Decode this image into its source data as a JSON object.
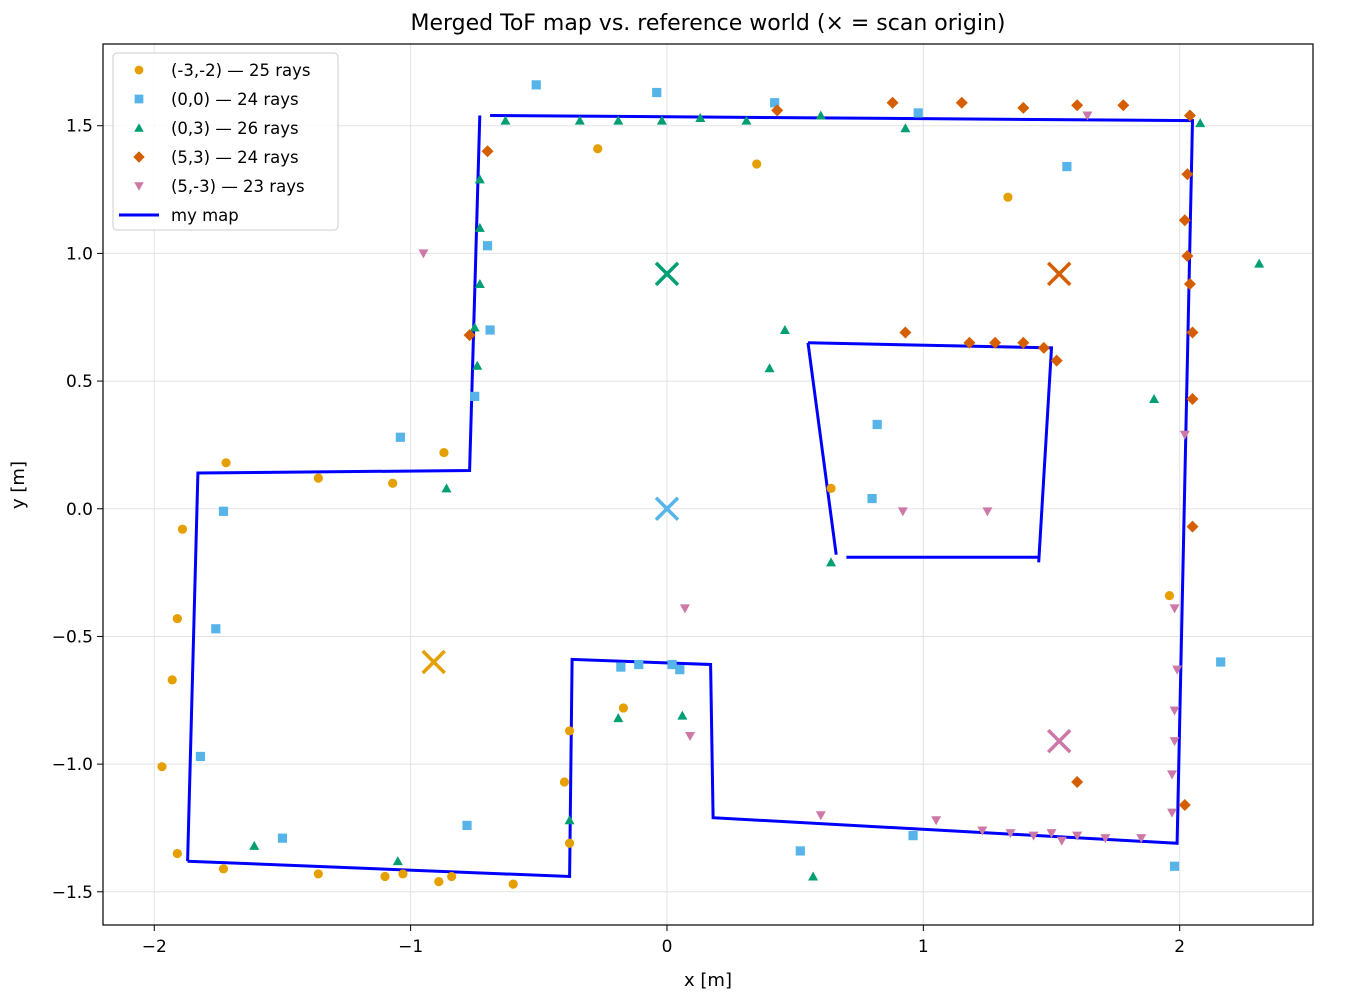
{
  "chart_data": {
    "type": "scatter",
    "title": "Merged ToF map vs. reference world  (× = scan origin)",
    "xlabel": "x [m]",
    "ylabel": "y [m]",
    "xlim": [
      -2.2,
      2.52
    ],
    "ylim": [
      -1.63,
      1.82
    ],
    "xticks": [
      -2,
      -1,
      0,
      1,
      2
    ],
    "xtick_labels": [
      "−2",
      "−1",
      "0",
      "1",
      "2"
    ],
    "yticks": [
      -1.5,
      -1.0,
      -0.5,
      0.0,
      0.5,
      1.0,
      1.5
    ],
    "ytick_labels": [
      "−1.5",
      "−1.0",
      "−0.5",
      "0.0",
      "0.5",
      "1.0",
      "1.5"
    ],
    "grid": true,
    "legend_position": "top-left",
    "series": [
      {
        "name": "(-3,-2) — 25 rays",
        "marker": "circle",
        "color": "#E69F00",
        "origin": [
          -0.91,
          -0.6
        ],
        "points": [
          [
            -0.27,
            1.41
          ],
          [
            0.35,
            1.35
          ],
          [
            1.33,
            1.22
          ],
          [
            -1.72,
            0.18
          ],
          [
            -1.36,
            0.12
          ],
          [
            -1.07,
            0.1
          ],
          [
            -0.87,
            0.22
          ],
          [
            -1.89,
            -0.08
          ],
          [
            -1.91,
            -0.43
          ],
          [
            -1.93,
            -0.67
          ],
          [
            -1.97,
            -1.01
          ],
          [
            -1.91,
            -1.35
          ],
          [
            -1.73,
            -1.41
          ],
          [
            -1.36,
            -1.43
          ],
          [
            -1.1,
            -1.44
          ],
          [
            -1.03,
            -1.43
          ],
          [
            -0.89,
            -1.46
          ],
          [
            -0.84,
            -1.44
          ],
          [
            -0.6,
            -1.47
          ],
          [
            -0.38,
            -0.87
          ],
          [
            -0.4,
            -1.07
          ],
          [
            -0.38,
            -1.31
          ],
          [
            -0.17,
            -0.78
          ],
          [
            0.64,
            0.08
          ],
          [
            1.96,
            -0.34
          ]
        ]
      },
      {
        "name": "(0,0) — 24 rays",
        "marker": "square",
        "color": "#56B4E9",
        "origin": [
          0.0,
          0.0
        ],
        "points": [
          [
            -0.51,
            1.66
          ],
          [
            -0.04,
            1.63
          ],
          [
            0.42,
            1.59
          ],
          [
            0.98,
            1.55
          ],
          [
            1.56,
            1.34
          ],
          [
            -0.7,
            1.03
          ],
          [
            -0.69,
            0.7
          ],
          [
            -0.75,
            0.44
          ],
          [
            -1.04,
            0.28
          ],
          [
            -1.73,
            -0.01
          ],
          [
            -1.76,
            -0.47
          ],
          [
            -1.82,
            -0.97
          ],
          [
            -1.5,
            -1.29
          ],
          [
            -0.78,
            -1.24
          ],
          [
            -0.18,
            -0.62
          ],
          [
            -0.11,
            -0.61
          ],
          [
            0.02,
            -0.61
          ],
          [
            0.05,
            -0.63
          ],
          [
            0.82,
            0.33
          ],
          [
            0.8,
            0.04
          ],
          [
            2.16,
            -0.6
          ],
          [
            0.52,
            -1.34
          ],
          [
            0.96,
            -1.28
          ],
          [
            1.98,
            -1.4
          ]
        ]
      },
      {
        "name": "(0,3) — 26 rays",
        "marker": "triangle-up",
        "color": "#009E73",
        "origin": [
          0.0,
          0.92
        ],
        "points": [
          [
            -0.63,
            1.52
          ],
          [
            -0.34,
            1.52
          ],
          [
            -0.19,
            1.52
          ],
          [
            -0.02,
            1.52
          ],
          [
            0.13,
            1.53
          ],
          [
            0.31,
            1.52
          ],
          [
            0.6,
            1.54
          ],
          [
            0.93,
            1.49
          ],
          [
            2.08,
            1.51
          ],
          [
            -0.73,
            1.29
          ],
          [
            -0.73,
            1.1
          ],
          [
            -0.73,
            0.88
          ],
          [
            -0.75,
            0.71
          ],
          [
            -0.74,
            0.56
          ],
          [
            -0.86,
            0.08
          ],
          [
            0.46,
            0.7
          ],
          [
            0.4,
            0.55
          ],
          [
            1.9,
            0.43
          ],
          [
            2.31,
            0.96
          ],
          [
            -0.19,
            -0.82
          ],
          [
            0.06,
            -0.81
          ],
          [
            0.64,
            -0.21
          ],
          [
            -1.61,
            -1.32
          ],
          [
            -1.05,
            -1.38
          ],
          [
            -0.38,
            -1.22
          ],
          [
            0.57,
            -1.44
          ]
        ]
      },
      {
        "name": "(5,3) — 24 rays",
        "marker": "diamond",
        "color": "#D55E00",
        "origin": [
          1.53,
          0.92
        ],
        "points": [
          [
            0.43,
            1.56
          ],
          [
            0.88,
            1.59
          ],
          [
            1.15,
            1.59
          ],
          [
            1.39,
            1.57
          ],
          [
            1.6,
            1.58
          ],
          [
            1.78,
            1.58
          ],
          [
            2.04,
            1.54
          ],
          [
            -0.7,
            1.4
          ],
          [
            -0.77,
            0.68
          ],
          [
            0.93,
            0.69
          ],
          [
            1.18,
            0.65
          ],
          [
            1.28,
            0.65
          ],
          [
            1.39,
            0.65
          ],
          [
            1.47,
            0.63
          ],
          [
            1.52,
            0.58
          ],
          [
            2.03,
            1.31
          ],
          [
            2.02,
            1.13
          ],
          [
            2.03,
            0.99
          ],
          [
            2.04,
            0.88
          ],
          [
            2.05,
            0.69
          ],
          [
            2.05,
            0.43
          ],
          [
            2.05,
            -0.07
          ],
          [
            1.6,
            -1.07
          ],
          [
            2.02,
            -1.16
          ]
        ]
      },
      {
        "name": "(5,-3) — 23 rays",
        "marker": "triangle-down",
        "color": "#CC79A7",
        "origin": [
          1.53,
          -0.91
        ],
        "points": [
          [
            -0.95,
            1.0
          ],
          [
            1.64,
            1.54
          ],
          [
            2.02,
            0.29
          ],
          [
            0.92,
            -0.01
          ],
          [
            1.25,
            -0.01
          ],
          [
            0.07,
            -0.39
          ],
          [
            0.09,
            -0.89
          ],
          [
            1.98,
            -0.39
          ],
          [
            1.99,
            -0.63
          ],
          [
            1.98,
            -0.79
          ],
          [
            1.98,
            -0.91
          ],
          [
            1.97,
            -1.04
          ],
          [
            1.97,
            -1.19
          ],
          [
            0.6,
            -1.2
          ],
          [
            1.05,
            -1.22
          ],
          [
            1.23,
            -1.26
          ],
          [
            1.34,
            -1.27
          ],
          [
            1.43,
            -1.28
          ],
          [
            1.5,
            -1.27
          ],
          [
            1.54,
            -1.3
          ],
          [
            1.6,
            -1.28
          ],
          [
            1.71,
            -1.29
          ],
          [
            1.85,
            -1.29
          ]
        ]
      }
    ],
    "map": {
      "name": "my map",
      "color": "#0000FF",
      "segments": [
        [
          [
            -1.87,
            -1.38
          ],
          [
            -0.38,
            -1.44
          ],
          [
            -0.37,
            -0.59
          ],
          [
            0.17,
            -0.61
          ],
          [
            0.18,
            -1.21
          ],
          [
            1.99,
            -1.31
          ],
          [
            2.05,
            1.52
          ],
          [
            -0.69,
            1.54
          ]
        ],
        [
          [
            -0.73,
            1.54
          ],
          [
            -0.77,
            0.15
          ],
          [
            -1.83,
            0.14
          ],
          [
            -1.87,
            -1.38
          ]
        ],
        [
          [
            0.55,
            0.65
          ],
          [
            1.5,
            0.63
          ],
          [
            1.45,
            -0.21
          ]
        ],
        [
          [
            1.45,
            -0.19
          ],
          [
            0.7,
            -0.19
          ]
        ],
        [
          [
            0.66,
            -0.18
          ],
          [
            0.55,
            0.65
          ]
        ]
      ]
    }
  }
}
